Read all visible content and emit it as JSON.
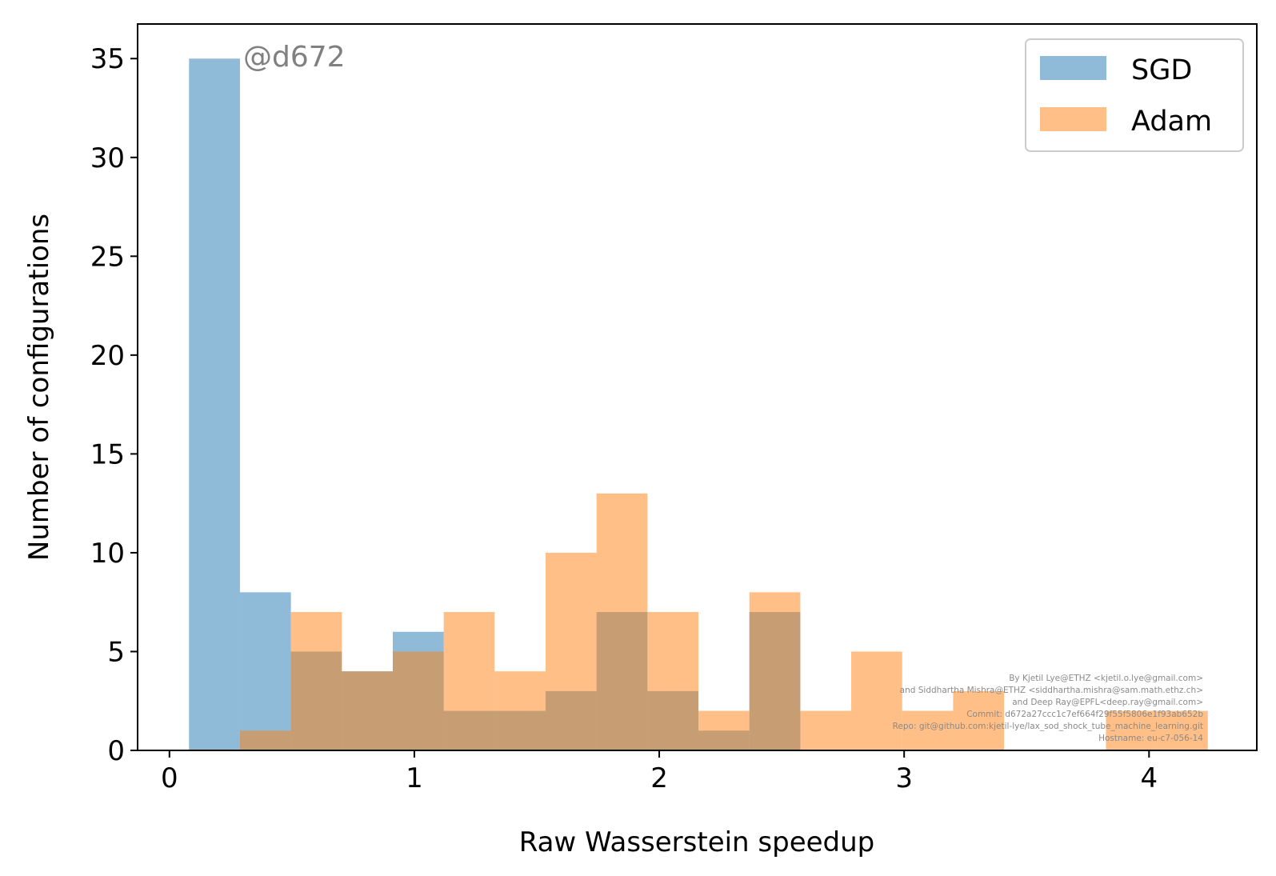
{
  "chart_data": {
    "type": "bar",
    "subtype": "histogram-overlay",
    "title": "",
    "xlabel": "Raw Wasserstein speedup",
    "ylabel": "Number of configurations",
    "xlim": [
      -0.13,
      4.44
    ],
    "ylim": [
      0,
      36.75
    ],
    "xticks": [
      0,
      1,
      2,
      3,
      4
    ],
    "yticks": [
      0,
      5,
      10,
      15,
      20,
      25,
      30,
      35
    ],
    "grid": false,
    "legend_position": "top-right",
    "annotation": "@d672",
    "series": [
      {
        "name": "SGD",
        "color": "#1f77b4",
        "alpha": 0.5,
        "bin_edges": [
          0.08,
          0.288,
          0.496,
          0.704,
          0.912,
          1.12,
          1.328,
          1.536,
          1.744,
          1.952,
          2.16,
          2.368,
          2.576
        ],
        "counts": [
          35,
          8,
          5,
          4,
          6,
          2,
          2,
          3,
          7,
          3,
          1,
          7
        ]
      },
      {
        "name": "Adam",
        "color": "#ff7f0e",
        "alpha": 0.5,
        "bin_edges": [
          0.288,
          0.496,
          0.704,
          0.912,
          1.12,
          1.328,
          1.536,
          1.744,
          1.952,
          2.16,
          2.368,
          2.576,
          2.784,
          2.992,
          3.2,
          3.408,
          3.616,
          3.824,
          4.032,
          4.24
        ],
        "counts": [
          1,
          7,
          4,
          5,
          7,
          4,
          10,
          13,
          7,
          2,
          8,
          2,
          5,
          2,
          3,
          0,
          0,
          2,
          2
        ]
      }
    ]
  },
  "credits": [
    "By Kjetil Lye@ETHZ <kjetil.o.lye@gmail.com>",
    "and Siddhartha Mishra@ETHZ <siddhartha.mishra@sam.math.ethz.ch>",
    "and Deep Ray@EPFL<deep.ray@gmail.com>",
    "Commit: d672a27ccc1c7ef664f29f55f5806e1f93ab652b",
    "Repo: git@github.com:kjetil-lye/lax_sod_shock_tube_machine_learning.git",
    "Hostname: eu-c7-056-14"
  ]
}
